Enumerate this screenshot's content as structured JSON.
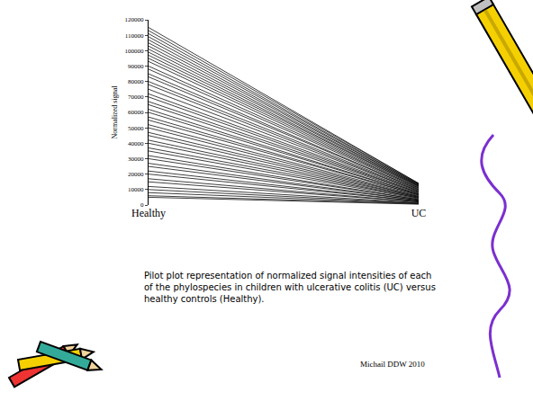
{
  "chart_data": {
    "type": "line",
    "categories": [
      "Healthy",
      "UC"
    ],
    "ylabel": "Normalized signal",
    "ylim": [
      0,
      120000
    ],
    "yticks": [
      0,
      10000,
      20000,
      30000,
      40000,
      50000,
      60000,
      70000,
      80000,
      90000,
      100000,
      110000,
      120000
    ],
    "grid": false,
    "color": "#000000",
    "series": [
      {
        "values": [
          115000,
          14000
        ]
      },
      {
        "values": [
          113000,
          14000
        ]
      },
      {
        "values": [
          111000,
          13500
        ]
      },
      {
        "values": [
          109000,
          13500
        ]
      },
      {
        "values": [
          107000,
          13000
        ]
      },
      {
        "values": [
          105000,
          13000
        ]
      },
      {
        "values": [
          103000,
          12500
        ]
      },
      {
        "values": [
          101000,
          12500
        ]
      },
      {
        "values": [
          99000,
          12000
        ]
      },
      {
        "values": [
          97000,
          12000
        ]
      },
      {
        "values": [
          95000,
          11500
        ]
      },
      {
        "values": [
          93000,
          11000
        ]
      },
      {
        "values": [
          90000,
          11000
        ]
      },
      {
        "values": [
          88000,
          10500
        ]
      },
      {
        "values": [
          85000,
          10000
        ]
      },
      {
        "values": [
          83000,
          10000
        ]
      },
      {
        "values": [
          80000,
          9500
        ]
      },
      {
        "values": [
          78000,
          9000
        ]
      },
      {
        "values": [
          75000,
          9000
        ]
      },
      {
        "values": [
          72000,
          8500
        ]
      },
      {
        "values": [
          70000,
          8000
        ]
      },
      {
        "values": [
          67000,
          8000
        ]
      },
      {
        "values": [
          65000,
          7500
        ]
      },
      {
        "values": [
          62000,
          7000
        ]
      },
      {
        "values": [
          60000,
          7000
        ]
      },
      {
        "values": [
          57000,
          6500
        ]
      },
      {
        "values": [
          55000,
          6500
        ]
      },
      {
        "values": [
          52000,
          6000
        ]
      },
      {
        "values": [
          50000,
          5500
        ]
      },
      {
        "values": [
          47000,
          5500
        ]
      },
      {
        "values": [
          45000,
          5000
        ]
      },
      {
        "values": [
          42000,
          5000
        ]
      },
      {
        "values": [
          40000,
          4500
        ]
      },
      {
        "values": [
          37000,
          4500
        ]
      },
      {
        "values": [
          35000,
          4000
        ]
      },
      {
        "values": [
          32000,
          3500
        ]
      },
      {
        "values": [
          30000,
          3500
        ]
      },
      {
        "values": [
          27000,
          3000
        ]
      },
      {
        "values": [
          25000,
          3000
        ]
      },
      {
        "values": [
          22000,
          2500
        ]
      },
      {
        "values": [
          20000,
          2500
        ]
      },
      {
        "values": [
          17000,
          2000
        ]
      },
      {
        "values": [
          15000,
          2000
        ]
      },
      {
        "values": [
          12000,
          1500
        ]
      },
      {
        "values": [
          10000,
          1200
        ]
      },
      {
        "values": [
          8000,
          1000
        ]
      },
      {
        "values": [
          6000,
          800
        ]
      },
      {
        "values": [
          5000,
          500
        ]
      }
    ],
    "annotations": [
      "Pilot plot representation of normalized signal intensities of each of the phylospecies in children with ulcerative colitis (UC) versus healthy controls (Healthy).",
      "Michail DDW 2010"
    ]
  }
}
